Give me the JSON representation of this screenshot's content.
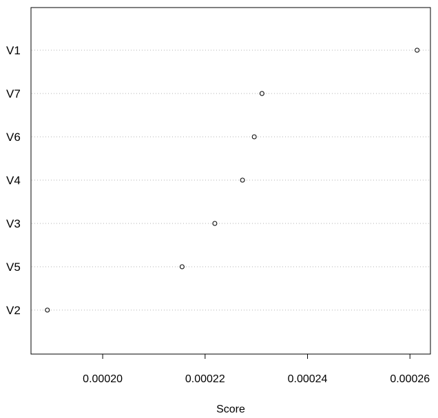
{
  "chart_data": {
    "type": "scatter",
    "title": "",
    "xlabel": "Score",
    "ylabel": "",
    "xlim": [
      0.000186,
      0.000264
    ],
    "grid": "horizontal dotted lines per category",
    "categories": [
      "V1",
      "V7",
      "V6",
      "V4",
      "V3",
      "V5",
      "V2"
    ],
    "values": [
      0.0002614,
      0.0002311,
      0.0002296,
      0.0002273,
      0.0002219,
      0.0002155,
      0.0001892
    ],
    "xticks": [
      0.0002,
      0.00022,
      0.00024,
      0.00026
    ],
    "xtick_labels": [
      "0.00020",
      "0.00022",
      "0.00024",
      "0.00026"
    ]
  }
}
